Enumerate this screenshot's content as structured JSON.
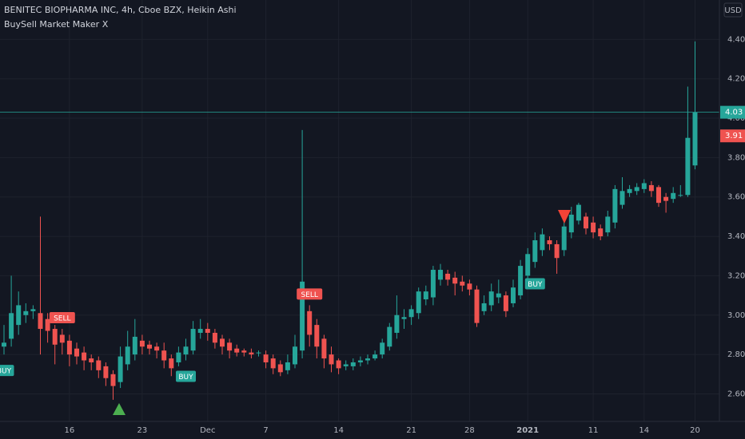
{
  "chart_data": {
    "type": "candlestick",
    "title": "BENITEC BIOPHARMA INC, 4h, Cboe BZX, Heikin Ashi",
    "subtitle": "BuySell Market Maker X",
    "currency": "USD",
    "up_color": "#26a69a",
    "down_color": "#ef5350",
    "grid": true,
    "categories": [
      null,
      null,
      null,
      null,
      null,
      null,
      null,
      null,
      null,
      "16",
      null,
      null,
      null,
      null,
      null,
      null,
      null,
      null,
      null,
      "23",
      null,
      null,
      null,
      null,
      null,
      null,
      null,
      null,
      "Dec",
      null,
      null,
      null,
      null,
      null,
      null,
      null,
      "7",
      null,
      null,
      null,
      null,
      null,
      null,
      null,
      null,
      null,
      "14",
      null,
      null,
      null,
      null,
      null,
      null,
      null,
      null,
      null,
      "21",
      null,
      null,
      null,
      null,
      null,
      null,
      null,
      "28",
      null,
      null,
      null,
      null,
      null,
      null,
      null,
      "2021",
      null,
      null,
      null,
      null,
      null,
      null,
      null,
      null,
      "11",
      null,
      null,
      null,
      null,
      null,
      null,
      "14",
      null,
      null,
      null,
      null,
      null,
      null,
      "20"
    ],
    "open": [
      2.84,
      2.88,
      2.95,
      3.0,
      3.02,
      3.01,
      2.98,
      2.93,
      2.9,
      2.87,
      2.83,
      2.81,
      2.78,
      2.77,
      2.74,
      2.7,
      2.66,
      2.75,
      2.8,
      2.87,
      2.85,
      2.84,
      2.82,
      2.78,
      2.76,
      2.8,
      2.82,
      2.91,
      2.93,
      2.91,
      2.88,
      2.86,
      2.83,
      2.82,
      2.81,
      2.81,
      2.8,
      2.78,
      2.75,
      2.72,
      2.75,
      2.82,
      3.02,
      2.95,
      2.88,
      2.8,
      2.77,
      2.74,
      2.74,
      2.76,
      2.77,
      2.78,
      2.8,
      2.84,
      2.91,
      2.98,
      2.99,
      3.01,
      3.08,
      3.09,
      3.18,
      3.21,
      3.19,
      3.17,
      3.16,
      3.13,
      3.02,
      3.05,
      3.09,
      3.1,
      3.06,
      3.1,
      3.2,
      3.27,
      3.33,
      3.38,
      3.36,
      3.33,
      3.42,
      3.48,
      3.5,
      3.47,
      3.44,
      3.42,
      3.47,
      3.56,
      3.62,
      3.63,
      3.64,
      3.66,
      3.65,
      3.6,
      3.59,
      3.61,
      3.61,
      3.76
    ],
    "high": [
      2.95,
      3.2,
      3.12,
      3.06,
      3.05,
      3.5,
      3.01,
      2.95,
      2.93,
      2.9,
      2.86,
      2.84,
      2.8,
      2.79,
      2.76,
      2.72,
      2.84,
      2.92,
      2.98,
      2.9,
      2.87,
      2.86,
      2.86,
      2.8,
      2.84,
      2.88,
      2.97,
      2.98,
      2.96,
      2.93,
      2.9,
      2.88,
      2.85,
      2.83,
      2.83,
      2.82,
      2.82,
      2.8,
      2.77,
      2.8,
      2.9,
      3.94,
      3.05,
      2.98,
      2.9,
      2.84,
      2.78,
      2.77,
      2.78,
      2.79,
      2.8,
      2.82,
      2.88,
      2.96,
      3.1,
      3.03,
      3.05,
      3.14,
      3.15,
      3.25,
      3.26,
      3.23,
      3.22,
      3.2,
      3.18,
      3.15,
      3.1,
      3.16,
      3.18,
      3.12,
      3.18,
      3.28,
      3.34,
      3.42,
      3.44,
      3.4,
      3.38,
      3.48,
      3.55,
      3.57,
      3.52,
      3.5,
      3.46,
      3.53,
      3.66,
      3.7,
      3.66,
      3.67,
      3.69,
      3.68,
      3.66,
      3.62,
      3.65,
      3.66,
      4.16,
      4.39
    ],
    "low": [
      2.8,
      2.84,
      2.9,
      2.96,
      2.98,
      2.8,
      2.86,
      2.75,
      2.8,
      2.74,
      2.75,
      2.72,
      2.72,
      2.68,
      2.64,
      2.57,
      2.63,
      2.72,
      2.77,
      2.8,
      2.8,
      2.78,
      2.73,
      2.69,
      2.74,
      2.77,
      2.8,
      2.88,
      2.87,
      2.83,
      2.8,
      2.78,
      2.79,
      2.79,
      2.78,
      2.79,
      2.73,
      2.7,
      2.69,
      2.7,
      2.73,
      2.78,
      2.84,
      2.78,
      2.73,
      2.71,
      2.7,
      2.72,
      2.72,
      2.74,
      2.75,
      2.77,
      2.78,
      2.82,
      2.88,
      2.93,
      2.95,
      2.98,
      3.05,
      3.05,
      3.15,
      3.15,
      3.1,
      3.12,
      3.1,
      2.94,
      3.0,
      3.02,
      3.06,
      2.99,
      3.04,
      3.08,
      3.17,
      3.24,
      3.3,
      3.33,
      3.21,
      3.3,
      3.39,
      3.46,
      3.41,
      3.39,
      3.38,
      3.4,
      3.44,
      3.54,
      3.6,
      3.61,
      3.62,
      3.6,
      3.55,
      3.52,
      3.57,
      3.6,
      3.6,
      3.74
    ],
    "close": [
      2.86,
      3.01,
      3.05,
      3.02,
      3.03,
      2.93,
      2.92,
      2.85,
      2.86,
      2.8,
      2.79,
      2.77,
      2.76,
      2.72,
      2.68,
      2.64,
      2.79,
      2.84,
      2.89,
      2.84,
      2.83,
      2.82,
      2.77,
      2.73,
      2.81,
      2.84,
      2.93,
      2.93,
      2.91,
      2.86,
      2.84,
      2.82,
      2.81,
      2.81,
      2.8,
      2.81,
      2.76,
      2.73,
      2.71,
      2.76,
      2.84,
      3.17,
      2.9,
      2.84,
      2.78,
      2.75,
      2.73,
      2.75,
      2.76,
      2.77,
      2.78,
      2.8,
      2.86,
      2.94,
      3.0,
      2.99,
      3.03,
      3.12,
      3.12,
      3.23,
      3.23,
      3.18,
      3.16,
      3.15,
      3.13,
      2.96,
      3.06,
      3.12,
      3.11,
      3.02,
      3.14,
      3.25,
      3.31,
      3.38,
      3.41,
      3.36,
      3.29,
      3.45,
      3.51,
      3.56,
      3.44,
      3.42,
      3.4,
      3.5,
      3.64,
      3.63,
      3.64,
      3.65,
      3.67,
      3.63,
      3.57,
      3.58,
      3.62,
      3.61,
      3.9,
      4.03
    ],
    "ylim": [
      2.46,
      4.6
    ],
    "yticks": [
      {
        "value": 2.6,
        "label": "2.60"
      },
      {
        "value": 2.8,
        "label": "2.80"
      },
      {
        "value": 3.0,
        "label": "3.00"
      },
      {
        "value": 3.2,
        "label": "3.20"
      },
      {
        "value": 3.4,
        "label": "3.40"
      },
      {
        "value": 3.6,
        "label": "3.60"
      },
      {
        "value": 3.8,
        "label": "3.80"
      },
      {
        "value": 4.0,
        "label": "4.00"
      },
      {
        "value": 4.2,
        "label": "4.20"
      },
      {
        "value": 4.4,
        "label": "4.40"
      }
    ],
    "price_lines": [
      {
        "value": 4.03,
        "color": "#26a69a",
        "line": true
      },
      {
        "value": 3.91,
        "color": "#ef5350",
        "line": false
      }
    ],
    "annotations": [
      {
        "text": "BUY",
        "candle": 0,
        "color": "#26a69a"
      },
      {
        "text": "SELL",
        "candle": 8,
        "color": "#ef5350"
      },
      {
        "text": "BUY",
        "candle": 25,
        "color": "#26a69a"
      },
      {
        "text": "SELL",
        "candle": 42,
        "color": "#ef5350"
      },
      {
        "text": "BUY",
        "candle": 73,
        "color": "#26a69a"
      }
    ]
  }
}
